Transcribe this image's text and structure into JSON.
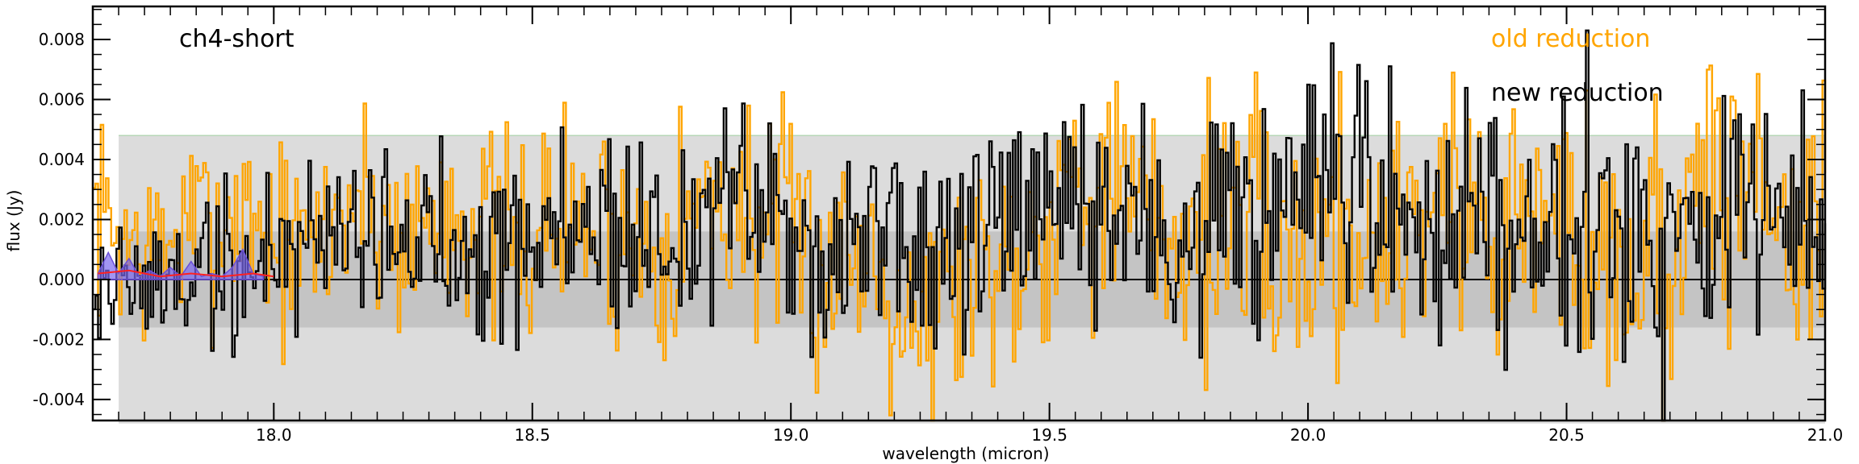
{
  "chart_data": {
    "type": "line",
    "title": "",
    "panel_label": "ch4-short",
    "xlabel": "wavelength (micron)",
    "ylabel": "flux (Jy)",
    "xlim": [
      17.65,
      21.0
    ],
    "ylim": [
      -0.0047,
      0.0091
    ],
    "x_ticks": [
      18.0,
      18.5,
      19.0,
      19.5,
      20.0,
      20.5,
      21.0
    ],
    "x_tick_labels": [
      "18.0",
      "18.5",
      "19.0",
      "19.5",
      "20.0",
      "20.5",
      "21.0"
    ],
    "y_ticks": [
      -0.004,
      -0.002,
      0.0,
      0.002,
      0.004,
      0.006,
      0.008
    ],
    "y_tick_labels": [
      "-0.004",
      "-0.002",
      "0.000",
      "0.002",
      "0.004",
      "0.006",
      "0.008"
    ],
    "grid": false,
    "legend_placement": "top-right",
    "bands": [
      {
        "x_start": 17.7,
        "x_end": 21.0,
        "y_low": -0.0048,
        "y_high": 0.0048,
        "color": "#dcdcdc"
      },
      {
        "x_start": 17.7,
        "x_end": 21.0,
        "y_low": -0.0016,
        "y_high": 0.0016,
        "color": "#c4c4c4"
      }
    ],
    "series": [
      {
        "name": "old reduction",
        "color": "#ffa500",
        "x": [
          17.65,
          17.75,
          17.85,
          17.95,
          18.05,
          18.15,
          18.25,
          18.35,
          18.45,
          18.55,
          18.65,
          18.75,
          18.85,
          18.95,
          19.05,
          19.15,
          19.25,
          19.35,
          19.45,
          19.55,
          19.65,
          19.75,
          19.85,
          19.95,
          20.05,
          20.15,
          20.25,
          20.35,
          20.45,
          20.55,
          20.65,
          20.75,
          20.85,
          20.95
        ],
        "y": [
          0.0022,
          0.0008,
          0.0018,
          0.0024,
          0.0006,
          0.0028,
          0.0014,
          0.0026,
          0.0009,
          0.0021,
          0.0015,
          0.0012,
          0.0028,
          0.0019,
          0.0005,
          0.0012,
          -0.0012,
          0.0006,
          0.0011,
          0.0038,
          0.0023,
          0.0013,
          0.0024,
          0.0005,
          0.0017,
          0.0014,
          0.0032,
          0.0016,
          0.0022,
          0.0011,
          0.0008,
          0.0024,
          0.0033,
          0.0018
        ],
        "extremes": {
          "max": 0.0063,
          "min": -0.0047
        }
      },
      {
        "name": "new reduction",
        "color": "#000000",
        "x": [
          17.65,
          17.75,
          17.85,
          17.95,
          18.05,
          18.15,
          18.25,
          18.35,
          18.45,
          18.55,
          18.65,
          18.75,
          18.85,
          18.95,
          19.05,
          19.15,
          19.25,
          19.35,
          19.45,
          19.55,
          19.65,
          19.75,
          19.85,
          19.95,
          20.05,
          20.15,
          20.25,
          20.35,
          20.45,
          20.55,
          20.65,
          20.75,
          20.85,
          20.95
        ],
        "y": [
          0.0002,
          -0.0004,
          0.0004,
          0.0002,
          0.0014,
          0.0021,
          0.0009,
          0.0017,
          0.0012,
          0.0016,
          0.0019,
          0.0011,
          0.0024,
          0.0021,
          0.0009,
          0.0017,
          0.0006,
          0.0011,
          0.0016,
          0.0023,
          0.0021,
          0.0013,
          0.0018,
          0.0019,
          0.0028,
          0.0022,
          0.0019,
          0.0024,
          0.0021,
          0.0026,
          0.0014,
          0.0022,
          0.0021,
          0.0016
        ],
        "extremes": {
          "max": 0.0083,
          "min": -0.0047
        }
      },
      {
        "color": "#6a4fd8",
        "fill": "#7b68ee",
        "x": [
          17.66,
          17.68,
          17.7,
          17.72,
          17.74,
          17.76,
          17.78,
          17.8,
          17.82,
          17.84,
          17.86,
          17.88,
          17.9,
          17.92,
          17.94,
          17.96,
          17.98
        ],
        "y": [
          0.0002,
          0.0009,
          0.0002,
          0.0007,
          0.0001,
          0.0003,
          0.0001,
          0.0004,
          0.0001,
          0.0006,
          0.0001,
          0.0002,
          0.0001,
          0.0004,
          0.001,
          0.0002,
          0.0001
        ]
      },
      {
        "color": "#ff2020",
        "x": [
          17.66,
          17.72,
          17.78,
          17.84,
          17.9,
          17.96,
          18.0
        ],
        "y": [
          0.0002,
          0.0003,
          0.0001,
          0.0002,
          0.0001,
          0.0002,
          0.0001
        ]
      }
    ]
  }
}
